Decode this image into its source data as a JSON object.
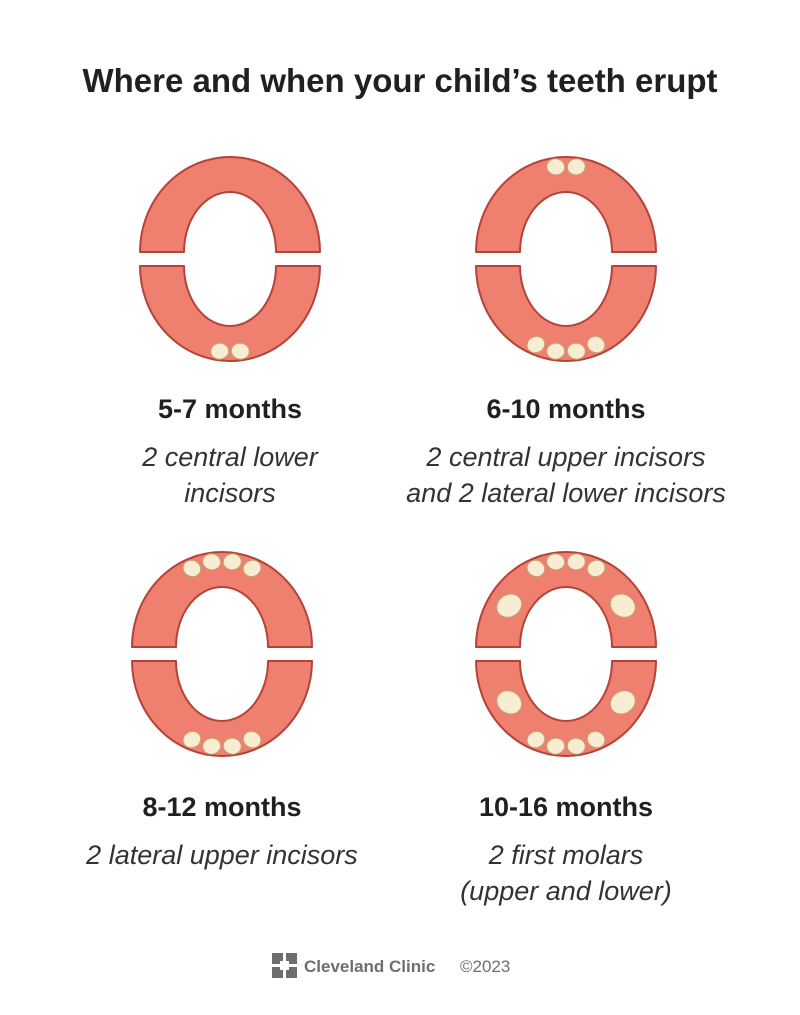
{
  "header": {
    "title": "Where and when your child’s teeth erupt"
  },
  "panels": [
    {
      "label": "5-7 months",
      "description": [
        "2 central lower",
        "incisors"
      ]
    },
    {
      "label": "6-10 months",
      "description": [
        "2 central upper incisors",
        "and 2 lateral lower incisors"
      ]
    },
    {
      "label": "8-12 months",
      "description": [
        "2 lateral upper incisors"
      ]
    },
    {
      "label": "10-16 months",
      "description": [
        "2 first molars",
        "(upper and lower)"
      ]
    }
  ],
  "footer": {
    "brand": "Cleveland Clinic",
    "copyright": "©2023"
  }
}
